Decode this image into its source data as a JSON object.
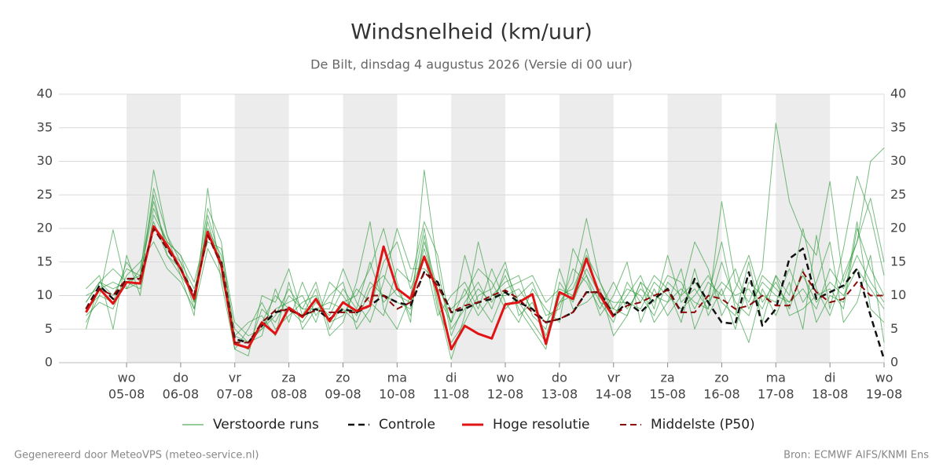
{
  "chart_data": {
    "type": "line",
    "title": "Windsnelheid (km/uur)",
    "subtitle": "De Bilt, dinsdag  4 augustus 2026 (Versie di 00 uur)",
    "x": [
      4.25,
      4.5,
      4.75,
      5,
      5.25,
      5.5,
      5.75,
      6,
      6.25,
      6.5,
      6.75,
      7,
      7.25,
      7.5,
      7.75,
      8,
      8.25,
      8.5,
      8.75,
      9,
      9.25,
      9.5,
      9.75,
      10,
      10.25,
      10.5,
      10.75,
      11,
      11.25,
      11.5,
      11.75,
      12,
      12.25,
      12.5,
      12.75,
      13,
      13.25,
      13.5,
      13.75,
      14,
      14.25,
      14.5,
      14.75,
      15,
      15.25,
      15.5,
      15.75,
      16,
      16.25,
      16.5,
      16.75,
      17,
      17.25,
      17.5,
      17.75,
      18,
      18.25,
      18.5,
      18.75,
      19
    ],
    "xlim": [
      3.75,
      19
    ],
    "xticks": [
      {
        "value": 5,
        "label": [
          "wo",
          "05-08"
        ]
      },
      {
        "value": 6,
        "label": [
          "do",
          "06-08"
        ]
      },
      {
        "value": 7,
        "label": [
          "vr",
          "07-08"
        ]
      },
      {
        "value": 8,
        "label": [
          "za",
          "08-08"
        ]
      },
      {
        "value": 9,
        "label": [
          "zo",
          "09-08"
        ]
      },
      {
        "value": 10,
        "label": [
          "ma",
          "10-08"
        ]
      },
      {
        "value": 11,
        "label": [
          "di",
          "11-08"
        ]
      },
      {
        "value": 12,
        "label": [
          "wo",
          "12-08"
        ]
      },
      {
        "value": 13,
        "label": [
          "do",
          "13-08"
        ]
      },
      {
        "value": 14,
        "label": [
          "vr",
          "14-08"
        ]
      },
      {
        "value": 15,
        "label": [
          "za",
          "15-08"
        ]
      },
      {
        "value": 16,
        "label": [
          "zo",
          "16-08"
        ]
      },
      {
        "value": 17,
        "label": [
          "ma",
          "17-08"
        ]
      },
      {
        "value": 18,
        "label": [
          "di",
          "18-08"
        ]
      },
      {
        "value": 19,
        "label": [
          "wo",
          "19-08"
        ]
      }
    ],
    "ylim": [
      0,
      40
    ],
    "yticks": [
      0,
      5,
      10,
      15,
      20,
      25,
      30,
      35,
      40
    ],
    "grid": true,
    "ensemble": {
      "name": "Verstoorde runs",
      "color": "#2e9a3a",
      "members": [
        [
          9,
          12,
          10,
          14,
          13,
          28.7,
          19,
          15,
          8,
          22,
          15,
          3,
          2,
          8,
          6,
          10,
          8,
          12,
          5,
          9,
          10,
          14,
          20,
          12,
          6,
          28.7,
          14,
          4,
          9,
          12,
          8,
          14,
          9,
          6,
          3,
          9,
          12,
          21.5,
          12,
          7,
          10,
          13,
          8,
          16,
          9,
          11,
          8,
          24,
          12,
          9,
          14,
          35.7,
          24,
          19,
          16,
          27,
          12,
          18,
          30,
          32
        ],
        [
          6,
          10,
          19.8,
          11,
          12,
          25,
          16,
          13,
          7,
          26,
          12,
          2,
          1,
          10,
          9,
          14,
          7,
          11,
          4,
          6,
          12,
          21,
          8,
          5,
          10,
          20,
          9,
          0.5,
          7,
          18,
          10,
          12,
          13,
          7,
          5,
          14,
          8,
          9,
          11,
          4,
          7,
          12,
          6,
          9,
          14,
          5,
          10,
          18,
          8,
          3,
          11,
          7,
          12,
          5,
          19,
          8,
          17,
          27.8,
          22,
          13
        ],
        [
          11,
          13,
          5,
          16,
          10,
          22,
          18,
          16,
          12,
          20,
          16,
          5,
          3,
          4,
          11,
          6,
          12,
          7,
          10,
          12,
          5,
          8,
          15,
          18,
          11,
          16,
          7,
          10,
          12,
          8,
          14,
          9,
          6,
          11,
          8,
          6,
          17,
          13,
          7,
          10,
          15,
          6,
          11,
          7,
          10,
          18,
          14,
          7,
          11,
          16,
          9,
          12,
          8,
          14,
          6,
          10,
          9,
          21,
          8,
          6
        ],
        [
          7,
          9,
          8,
          13,
          15,
          18,
          14,
          12,
          8,
          17,
          13,
          4,
          6,
          7,
          4,
          12,
          5,
          8,
          8,
          14,
          9,
          6,
          12,
          20,
          14,
          14,
          12,
          6,
          16,
          9,
          6,
          11,
          12,
          13,
          9,
          11,
          10,
          17,
          9,
          6,
          12,
          9,
          13,
          11,
          6,
          14,
          7,
          11,
          5,
          12,
          10,
          9,
          14,
          9,
          12,
          18,
          6,
          9,
          16,
          3
        ],
        [
          10,
          11,
          12,
          11,
          14,
          24,
          17,
          15,
          11,
          18,
          17,
          6,
          4,
          5,
          8,
          9,
          10,
          6,
          12,
          10,
          7,
          12,
          10,
          9,
          8,
          18,
          11,
          8,
          10,
          14,
          12,
          8,
          10,
          12,
          7,
          8,
          14,
          12,
          8,
          12,
          8,
          11,
          9,
          13,
          12,
          8,
          12,
          10,
          14,
          8,
          12,
          10,
          9,
          11,
          8,
          14,
          11,
          16,
          12,
          9
        ],
        [
          5,
          12,
          14,
          12,
          11,
          21,
          16,
          14,
          9,
          21,
          14,
          2,
          5,
          9,
          5,
          7,
          9,
          10,
          6,
          7,
          11,
          9,
          7,
          14,
          12,
          21,
          16,
          5,
          8,
          11,
          9,
          13,
          8,
          5,
          2,
          12,
          9,
          14,
          10,
          9,
          9,
          8,
          12,
          10,
          8,
          10,
          13,
          9,
          7,
          15,
          6,
          13,
          10,
          20,
          11,
          7,
          13,
          18,
          24.5,
          15
        ],
        [
          8,
          10,
          9,
          15,
          12,
          26,
          19,
          13,
          10,
          23,
          18,
          3,
          2,
          6,
          10,
          8,
          6,
          9,
          7,
          11,
          8,
          15,
          9,
          11,
          7,
          19,
          8,
          3,
          6,
          10,
          11,
          15,
          7,
          9,
          4,
          10,
          11,
          16,
          12,
          8,
          11,
          10,
          7,
          12,
          10,
          12,
          9,
          12,
          10,
          11,
          8,
          13,
          7,
          8,
          10,
          11,
          8,
          20,
          14,
          10
        ],
        [
          9,
          12,
          11,
          12,
          13,
          23,
          18,
          16,
          9,
          19,
          15,
          4,
          3,
          5,
          7,
          11,
          8,
          8,
          9,
          8,
          6,
          11,
          13,
          10,
          9,
          17,
          10,
          6,
          11,
          7,
          10,
          10,
          11,
          8,
          6,
          9,
          10,
          13,
          9,
          8,
          7,
          12,
          10,
          9,
          11,
          9,
          8,
          15,
          9,
          7,
          13,
          11,
          9,
          13,
          9,
          12,
          10,
          14,
          11,
          8
        ]
      ]
    },
    "series": [
      {
        "name": "Controle",
        "color": "#111111",
        "dashed": true,
        "width": 2.5,
        "values": [
          8,
          11.5,
          9.5,
          12.5,
          12.5,
          20,
          17,
          14,
          10,
          19,
          15,
          3.5,
          3,
          5.5,
          7.5,
          8,
          7,
          8,
          6.5,
          8,
          7.5,
          8.5,
          10,
          9,
          8.5,
          13.5,
          12,
          7.5,
          8,
          9,
          9.5,
          10.5,
          9,
          8,
          6,
          6.5,
          7.5,
          10.5,
          10.5,
          7,
          9,
          7.5,
          9.5,
          11,
          7.5,
          12.5,
          9,
          6,
          5.8,
          13.5,
          5.5,
          8,
          15.5,
          17,
          9.5,
          10.5,
          11.5,
          14,
          7,
          0.5
        ]
      },
      {
        "name": "Hoge resolutie",
        "color": "#e01414",
        "dashed": false,
        "width": 3,
        "values": [
          7.5,
          11,
          8.8,
          12,
          11.8,
          20.3,
          17.5,
          14,
          9.5,
          19.5,
          14.5,
          2.8,
          2.2,
          6,
          4.3,
          8.2,
          6.8,
          9.5,
          6.2,
          9,
          7.7,
          8.5,
          17.3,
          11,
          9.5,
          15.8,
          10.5,
          2,
          5.5,
          4.3,
          3.6,
          8.7,
          9,
          10.2,
          2.8,
          10.5,
          9.5,
          15.5,
          10,
          6.8,
          null,
          null,
          null,
          null,
          null,
          null,
          null,
          null,
          null,
          null,
          null,
          null,
          null,
          null,
          null,
          null,
          null,
          null,
          null,
          null
        ]
      },
      {
        "name": "Middelste (P50)",
        "color": "#8b0a0a",
        "dashed": true,
        "width": 2,
        "values": [
          8,
          11,
          10,
          12.5,
          12.5,
          20,
          17,
          14,
          10,
          19,
          14.5,
          3,
          3,
          6,
          7.8,
          7.8,
          7,
          7.8,
          7.5,
          7.5,
          7.5,
          10,
          10,
          8,
          9,
          13.5,
          11.5,
          7.5,
          8.5,
          9,
          10,
          10.8,
          9.5,
          7.5,
          6,
          6.5,
          7.5,
          10.5,
          10.5,
          7,
          8.5,
          9,
          10,
          10.8,
          7.5,
          7.5,
          10,
          9.5,
          8,
          8.5,
          10,
          8.5,
          8.5,
          13.5,
          10.5,
          9,
          9.5,
          12,
          10,
          10
        ]
      }
    ]
  },
  "footer": {
    "left": "Gegenereerd door MeteoVPS (meteo-service.nl)",
    "right": "Bron: ECMWF AIFS/KNMI Ens"
  }
}
